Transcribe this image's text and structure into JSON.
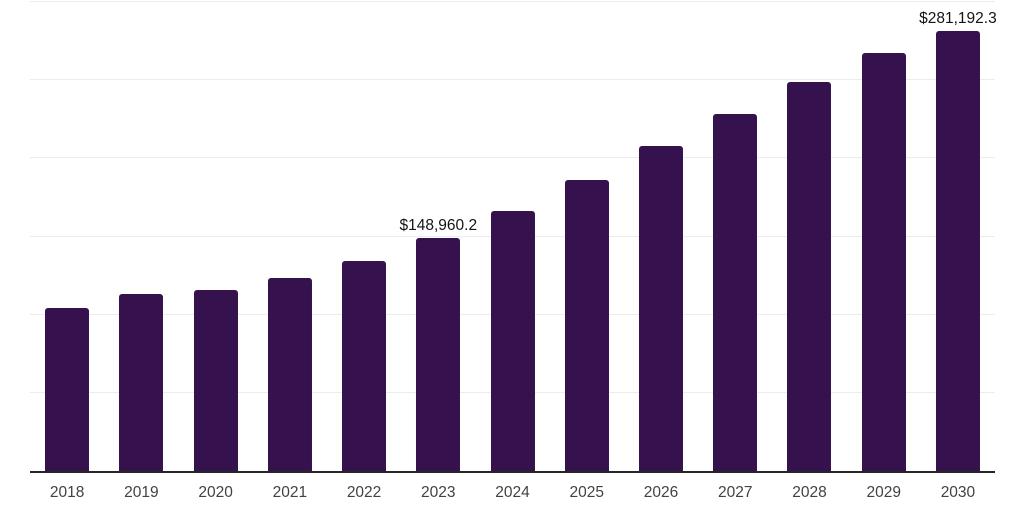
{
  "chart_data": {
    "type": "bar",
    "title": "",
    "xlabel": "",
    "ylabel": "",
    "categories": [
      "2018",
      "2019",
      "2020",
      "2021",
      "2022",
      "2023",
      "2024",
      "2025",
      "2026",
      "2027",
      "2028",
      "2029",
      "2030"
    ],
    "values": [
      104400,
      113400,
      115500,
      123600,
      134200,
      148960.2,
      166500,
      186100,
      208000,
      228200,
      248800,
      267100,
      281192.3
    ],
    "point_labels": [
      "",
      "",
      "",
      "",
      "",
      "$148,960.2",
      "",
      "",
      "",
      "",
      "",
      "",
      "$281,192.3"
    ],
    "ylim": [
      0,
      300000
    ],
    "grid_step": 50000,
    "grid": "horizontal-only",
    "legend": "none",
    "y_tick_labels_visible": false,
    "colors": {
      "bar": "#35124e",
      "gridline": "#ececec",
      "axis_line": "#262626",
      "tick_label": "#424242",
      "value_label": "#141414",
      "background": "#ffffff"
    }
  }
}
